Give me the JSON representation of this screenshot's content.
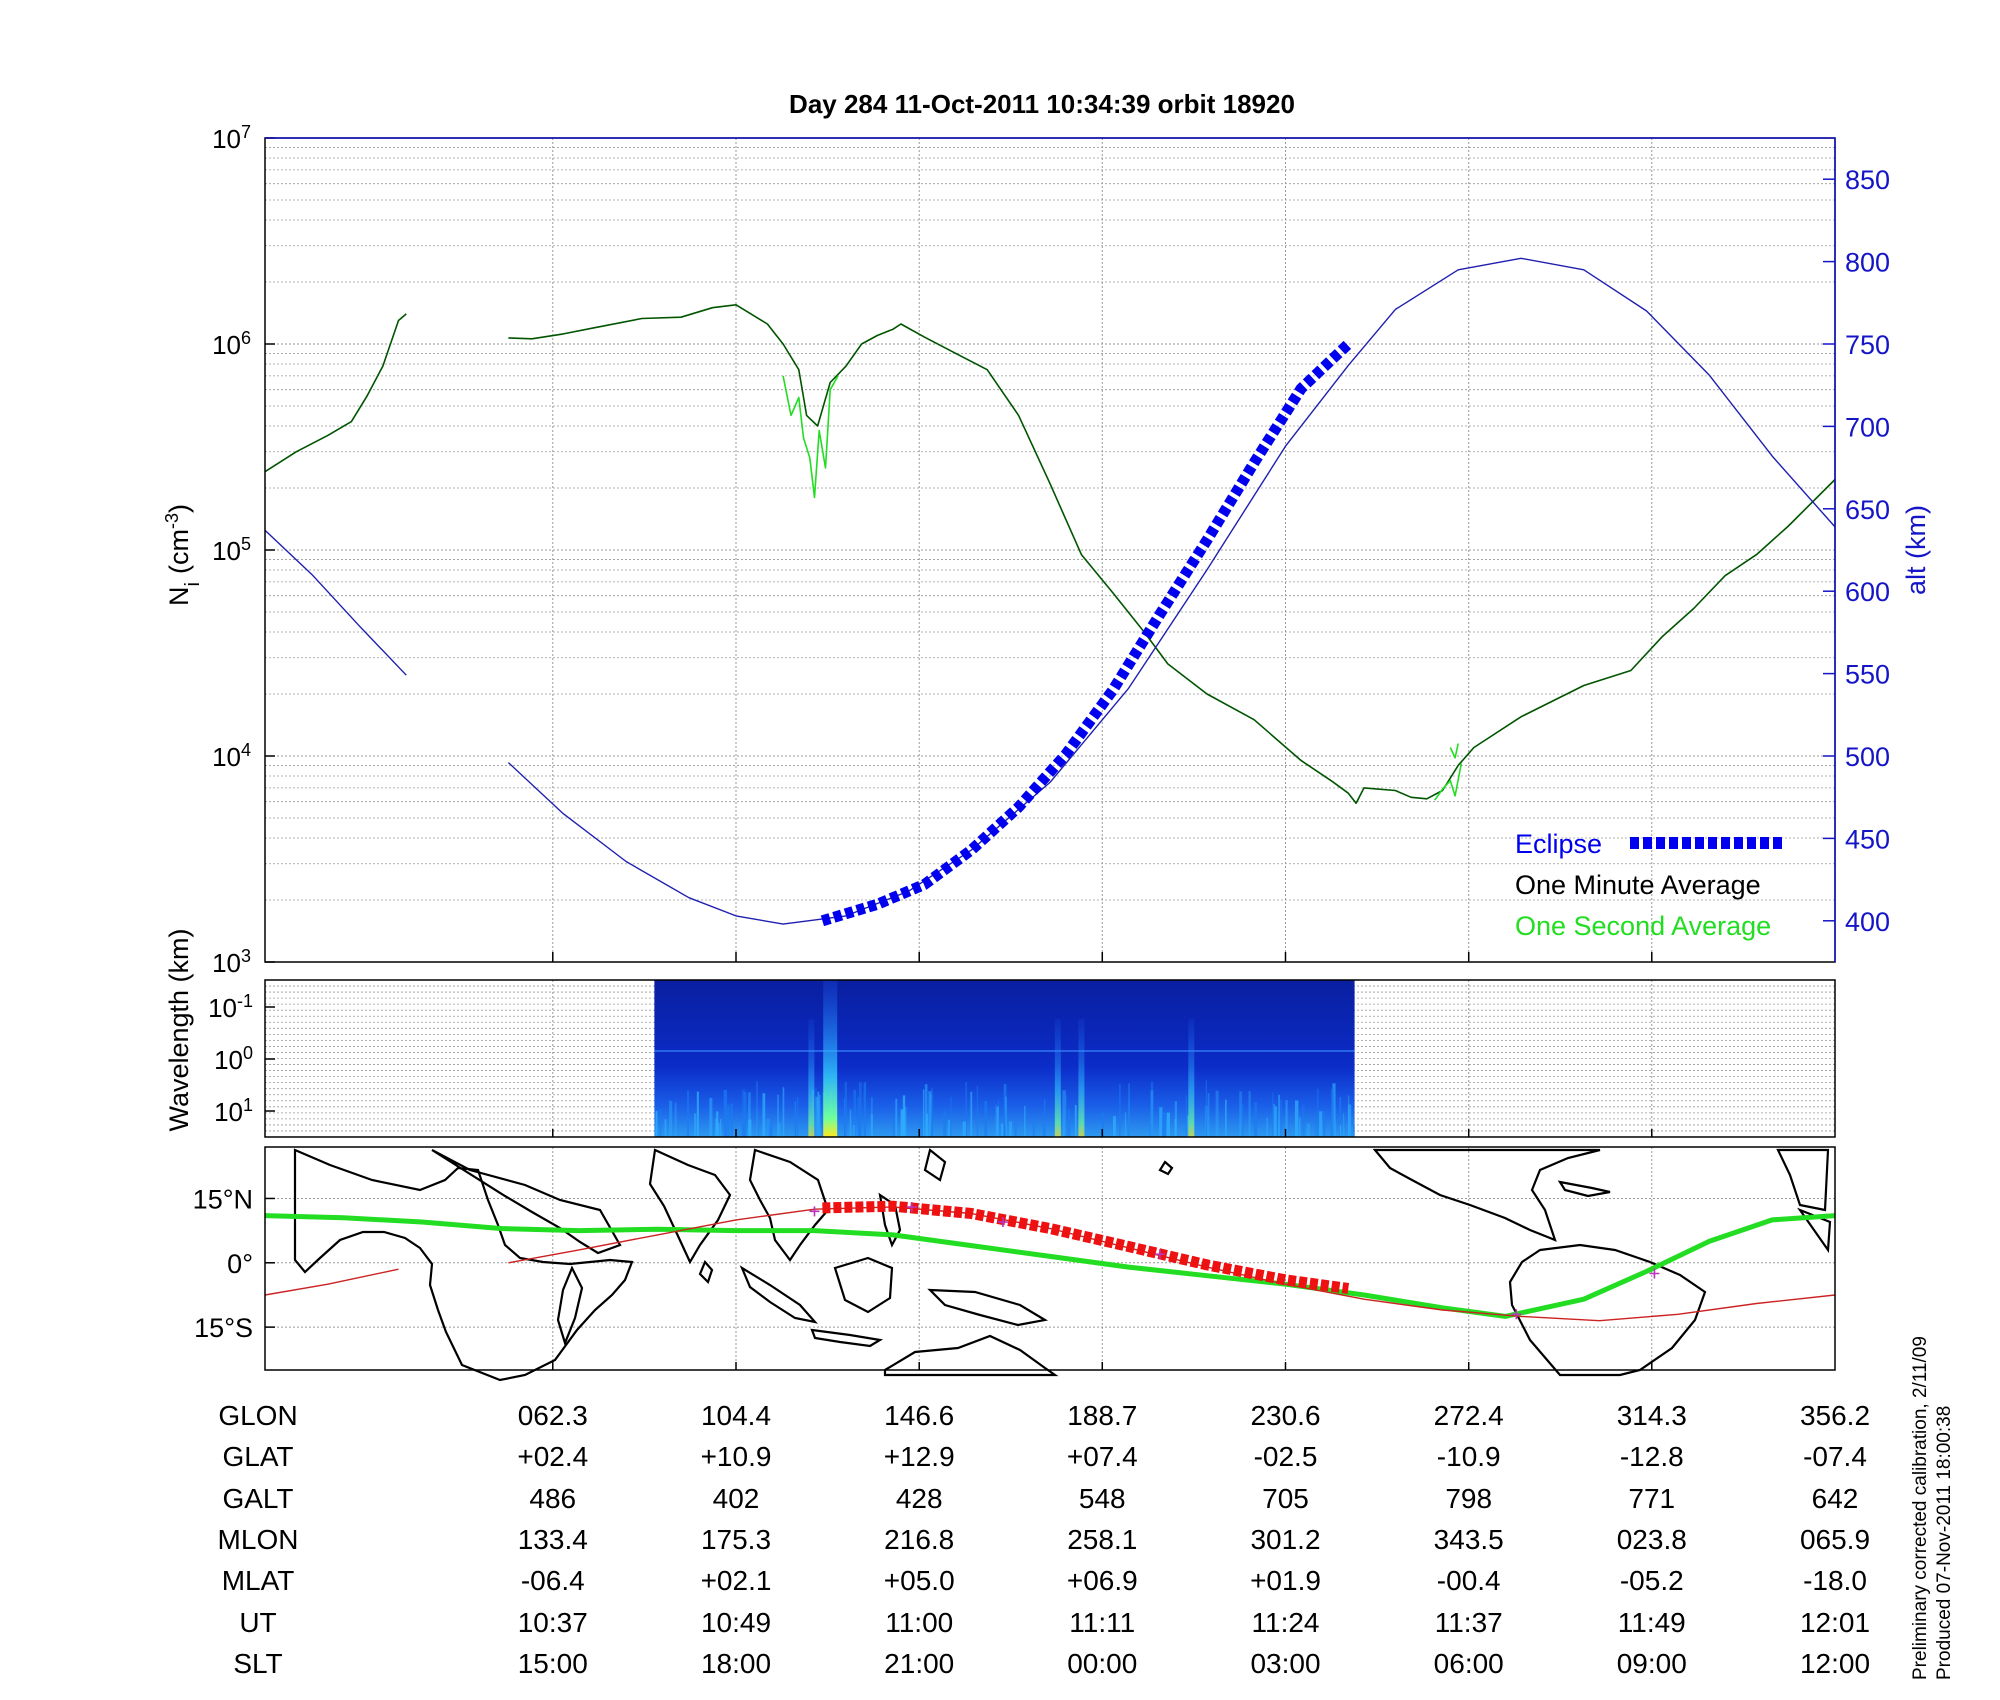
{
  "title": "Day 284  11-Oct-2011 10:34:39   orbit 18920",
  "chart_data": [
    {
      "type": "line",
      "panel": "ion-density",
      "ylabel_main": "N",
      "ylabel_sub": "i",
      "ylabel_unit": "(cm",
      "ylabel_exp": "-3",
      "ylabel_close": ")",
      "y_scale": "log",
      "ylim": [
        1000,
        10000000
      ],
      "y_ticks": [
        {
          "base": "10",
          "exp": "3",
          "value": 1000
        },
        {
          "base": "10",
          "exp": "4",
          "value": 10000
        },
        {
          "base": "10",
          "exp": "5",
          "value": 100000
        },
        {
          "base": "10",
          "exp": "6",
          "value": 1000000
        },
        {
          "base": "10",
          "exp": "7",
          "value": 10000000
        }
      ],
      "y2label": "alt (km)",
      "y2lim": [
        375,
        875
      ],
      "y2_ticks": [
        "400",
        "450",
        "500",
        "550",
        "600",
        "650",
        "700",
        "750",
        "800",
        "850"
      ],
      "x_domain": [
        0,
        1
      ],
      "x_tick_positions": [
        0.1833,
        0.3,
        0.4167,
        0.5333,
        0.65,
        0.7667,
        0.8833
      ],
      "grid": true,
      "legend_position": "bottom-right",
      "legend": [
        {
          "label": "Eclipse",
          "color": "#0000ee",
          "style": "dashed-thick"
        },
        {
          "label": "One Minute Average",
          "color": "#000000",
          "style": "none"
        },
        {
          "label": "One Second Average",
          "color": "#22dd22",
          "style": "none"
        }
      ],
      "series": [
        {
          "name": "One Minute Average",
          "color": "#005500",
          "axis": "left",
          "segments": [
            [
              [
                0,
                240000
              ],
              [
                0.02,
                300000
              ],
              [
                0.04,
                360000
              ],
              [
                0.055,
                420000
              ],
              [
                0.065,
                560000
              ],
              [
                0.075,
                780000
              ],
              [
                0.085,
                1300000
              ],
              [
                0.09,
                1400000
              ]
            ],
            [
              [
                0.155,
                1070000
              ],
              [
                0.17,
                1060000
              ],
              [
                0.19,
                1120000
              ],
              [
                0.21,
                1200000
              ],
              [
                0.24,
                1330000
              ],
              [
                0.265,
                1350000
              ],
              [
                0.285,
                1500000
              ],
              [
                0.3,
                1550000
              ],
              [
                0.32,
                1250000
              ],
              [
                0.33,
                1000000
              ],
              [
                0.34,
                750000
              ],
              [
                0.345,
                450000
              ],
              [
                0.352,
                400000
              ],
              [
                0.36,
                650000
              ],
              [
                0.37,
                780000
              ],
              [
                0.38,
                1000000
              ],
              [
                0.39,
                1100000
              ],
              [
                0.4,
                1180000
              ],
              [
                0.405,
                1250000
              ],
              [
                0.42,
                1080000
              ],
              [
                0.44,
                900000
              ],
              [
                0.46,
                750000
              ],
              [
                0.48,
                450000
              ],
              [
                0.5,
                210000
              ],
              [
                0.52,
                95000
              ],
              [
                0.54,
                62000
              ],
              [
                0.56,
                40000
              ],
              [
                0.575,
                28000
              ],
              [
                0.6,
                20000
              ],
              [
                0.63,
                15000
              ],
              [
                0.66,
                9500
              ],
              [
                0.68,
                7500
              ],
              [
                0.69,
                6600
              ],
              [
                0.695,
                5900
              ],
              [
                0.7,
                7000
              ],
              [
                0.72,
                6800
              ],
              [
                0.73,
                6300
              ],
              [
                0.74,
                6200
              ],
              [
                0.75,
                6800
              ],
              [
                0.76,
                9000
              ],
              [
                0.77,
                11000
              ],
              [
                0.8,
                15500
              ],
              [
                0.84,
                22000
              ],
              [
                0.87,
                26000
              ],
              [
                0.89,
                38000
              ],
              [
                0.91,
                52000
              ],
              [
                0.93,
                75000
              ],
              [
                0.95,
                95000
              ],
              [
                0.97,
                130000
              ],
              [
                1.0,
                220000
              ]
            ]
          ]
        },
        {
          "name": "One Second Average",
          "color": "#22dd22",
          "axis": "left",
          "segments": [
            [
              [
                0.33,
                700000
              ],
              [
                0.335,
                450000
              ],
              [
                0.34,
                550000
              ],
              [
                0.343,
                350000
              ],
              [
                0.347,
                280000
              ],
              [
                0.35,
                180000
              ],
              [
                0.353,
                380000
              ],
              [
                0.357,
                250000
              ],
              [
                0.36,
                600000
              ],
              [
                0.365,
                700000
              ]
            ],
            [
              [
                0.745,
                6100
              ],
              [
                0.75,
                6900
              ],
              [
                0.755,
                7600
              ],
              [
                0.758,
                6400
              ],
              [
                0.762,
                9200
              ]
            ],
            [
              [
                0.755,
                11000
              ],
              [
                0.758,
                9800
              ],
              [
                0.76,
                11500
              ]
            ]
          ]
        },
        {
          "name": "alt (km)",
          "color": "#2020b0",
          "axis": "right",
          "segments": [
            [
              [
                0,
                637
              ],
              [
                0.03,
                610
              ],
              [
                0.06,
                579
              ],
              [
                0.09,
                549
              ]
            ],
            [
              [
                0.155,
                496
              ],
              [
                0.19,
                465
              ],
              [
                0.23,
                436
              ],
              [
                0.27,
                414
              ],
              [
                0.3,
                403
              ],
              [
                0.33,
                398
              ],
              [
                0.37,
                403
              ],
              [
                0.41,
                418
              ],
              [
                0.45,
                443
              ],
              [
                0.5,
                484
              ],
              [
                0.55,
                541
              ],
              [
                0.6,
                613
              ],
              [
                0.65,
                688
              ],
              [
                0.69,
                737
              ],
              [
                0.72,
                771
              ],
              [
                0.76,
                795
              ],
              [
                0.8,
                802
              ],
              [
                0.84,
                795
              ],
              [
                0.88,
                770
              ],
              [
                0.92,
                731
              ],
              [
                0.96,
                682
              ],
              [
                1.0,
                639
              ]
            ]
          ]
        },
        {
          "name": "Eclipse",
          "color": "#0000ee",
          "axis": "right",
          "style": "dashed-thick",
          "segments": [
            [
              [
                0.355,
                400
              ],
              [
                0.39,
                410
              ],
              [
                0.42,
                422
              ],
              [
                0.45,
                443
              ],
              [
                0.48,
                469
              ],
              [
                0.51,
                501
              ],
              [
                0.54,
                540
              ],
              [
                0.57,
                586
              ],
              [
                0.6,
                631
              ],
              [
                0.63,
                678
              ],
              [
                0.66,
                723
              ],
              [
                0.69,
                750
              ]
            ]
          ]
        }
      ]
    },
    {
      "type": "heatmap",
      "panel": "wavelength",
      "ylabel": "Wavelength (km)",
      "y_ticks": [
        {
          "base": "10",
          "exp": "-1"
        },
        {
          "base": "10",
          "exp": "0"
        },
        {
          "base": "10",
          "exp": "1"
        }
      ],
      "x_extent": [
        0.248,
        0.694
      ],
      "colormap": "jet",
      "bright_columns": [
        0.348,
        0.36,
        0.505,
        0.52,
        0.59
      ]
    },
    {
      "type": "map",
      "panel": "ground-track",
      "y_ticks": [
        "15°N",
        "0°",
        "15°S"
      ],
      "ylim": [
        -25,
        27
      ],
      "series": [
        {
          "name": "magnetic-equator",
          "color": "#22dd22",
          "segments": [
            [
              [
                0,
                11
              ],
              [
                0.05,
                10.5
              ],
              [
                0.1,
                9.5
              ],
              [
                0.15,
                8
              ],
              [
                0.2,
                7.5
              ],
              [
                0.25,
                7.8
              ],
              [
                0.3,
                7.5
              ],
              [
                0.35,
                7.5
              ],
              [
                0.4,
                6.5
              ],
              [
                0.45,
                4
              ],
              [
                0.5,
                1.5
              ],
              [
                0.55,
                -1
              ],
              [
                0.6,
                -3
              ],
              [
                0.65,
                -5
              ],
              [
                0.7,
                -7.5
              ],
              [
                0.75,
                -10.5
              ],
              [
                0.79,
                -12.5
              ],
              [
                0.84,
                -8.5
              ],
              [
                0.88,
                -2
              ],
              [
                0.92,
                5
              ],
              [
                0.96,
                10
              ],
              [
                1.0,
                11
              ]
            ]
          ]
        },
        {
          "name": "orbit-track",
          "color": "#cc2222",
          "segments": [
            [
              [
                0,
                -7.5
              ],
              [
                0.04,
                -5
              ],
              [
                0.085,
                -1.5
              ]
            ],
            [
              [
                0.155,
                0
              ],
              [
                0.2,
                3
              ],
              [
                0.25,
                6.5
              ],
              [
                0.3,
                10
              ],
              [
                0.35,
                12.5
              ],
              [
                0.4,
                13
              ],
              [
                0.45,
                11.5
              ],
              [
                0.5,
                8
              ],
              [
                0.55,
                3.5
              ],
              [
                0.6,
                -1
              ],
              [
                0.65,
                -5
              ],
              [
                0.7,
                -8.5
              ],
              [
                0.75,
                -11
              ],
              [
                0.8,
                -12.5
              ],
              [
                0.85,
                -13.5
              ],
              [
                0.9,
                -12
              ],
              [
                0.95,
                -9.5
              ],
              [
                1.0,
                -7.5
              ]
            ]
          ]
        },
        {
          "name": "eclipse-track",
          "color": "#ee1111",
          "style": "dashed-thick",
          "segments": [
            [
              [
                0.355,
                12.8
              ],
              [
                0.4,
                13.2
              ],
              [
                0.45,
                11.5
              ],
              [
                0.5,
                8
              ],
              [
                0.55,
                3.8
              ],
              [
                0.6,
                -0.5
              ],
              [
                0.65,
                -4
              ],
              [
                0.69,
                -6
              ]
            ]
          ]
        },
        {
          "name": "track-markers",
          "color": "#bb33bb",
          "style": "markers",
          "segments": [
            [
              [
                0.35,
                12
              ],
              [
                0.412,
                13
              ],
              [
                0.47,
                9.5
              ],
              [
                0.57,
                2
              ],
              [
                0.797,
                -12
              ],
              [
                0.885,
                -2.5
              ]
            ]
          ]
        }
      ]
    }
  ],
  "orbit_table": {
    "rows": [
      {
        "label": "GLON",
        "values": [
          "062.3",
          "104.4",
          "146.6",
          "188.7",
          "230.6",
          "272.4",
          "314.3",
          "356.2"
        ]
      },
      {
        "label": "GLAT",
        "values": [
          "+02.4",
          "+10.9",
          "+12.9",
          "+07.4",
          "-02.5",
          "-10.9",
          "-12.8",
          "-07.4"
        ]
      },
      {
        "label": "GALT",
        "values": [
          "486",
          "402",
          "428",
          "548",
          "705",
          "798",
          "771",
          "642"
        ]
      },
      {
        "label": "MLON",
        "values": [
          "133.4",
          "175.3",
          "216.8",
          "258.1",
          "301.2",
          "343.5",
          "023.8",
          "065.9"
        ]
      },
      {
        "label": "MLAT",
        "values": [
          "-06.4",
          "+02.1",
          "+05.0",
          "+06.9",
          "+01.9",
          "-00.4",
          "-05.2",
          "-18.0"
        ]
      },
      {
        "label": "UT",
        "values": [
          "10:37",
          "10:49",
          "11:00",
          "11:11",
          "11:24",
          "11:37",
          "11:49",
          "12:01"
        ]
      },
      {
        "label": "SLT",
        "values": [
          "15:00",
          "18:00",
          "21:00",
          "00:00",
          "03:00",
          "06:00",
          "09:00",
          "12:00"
        ]
      }
    ],
    "column_positions": [
      0.1833,
      0.3,
      0.4167,
      0.5333,
      0.65,
      0.7667,
      0.8833,
      1.0
    ]
  },
  "footnotes": {
    "calibration": "Preliminary corrected calibration, 2/11/09",
    "produced": "Produced 07-Nov-2011 18:00:38"
  },
  "colors": {
    "alt_axis": "#1515c8",
    "grid": "#999999"
  }
}
